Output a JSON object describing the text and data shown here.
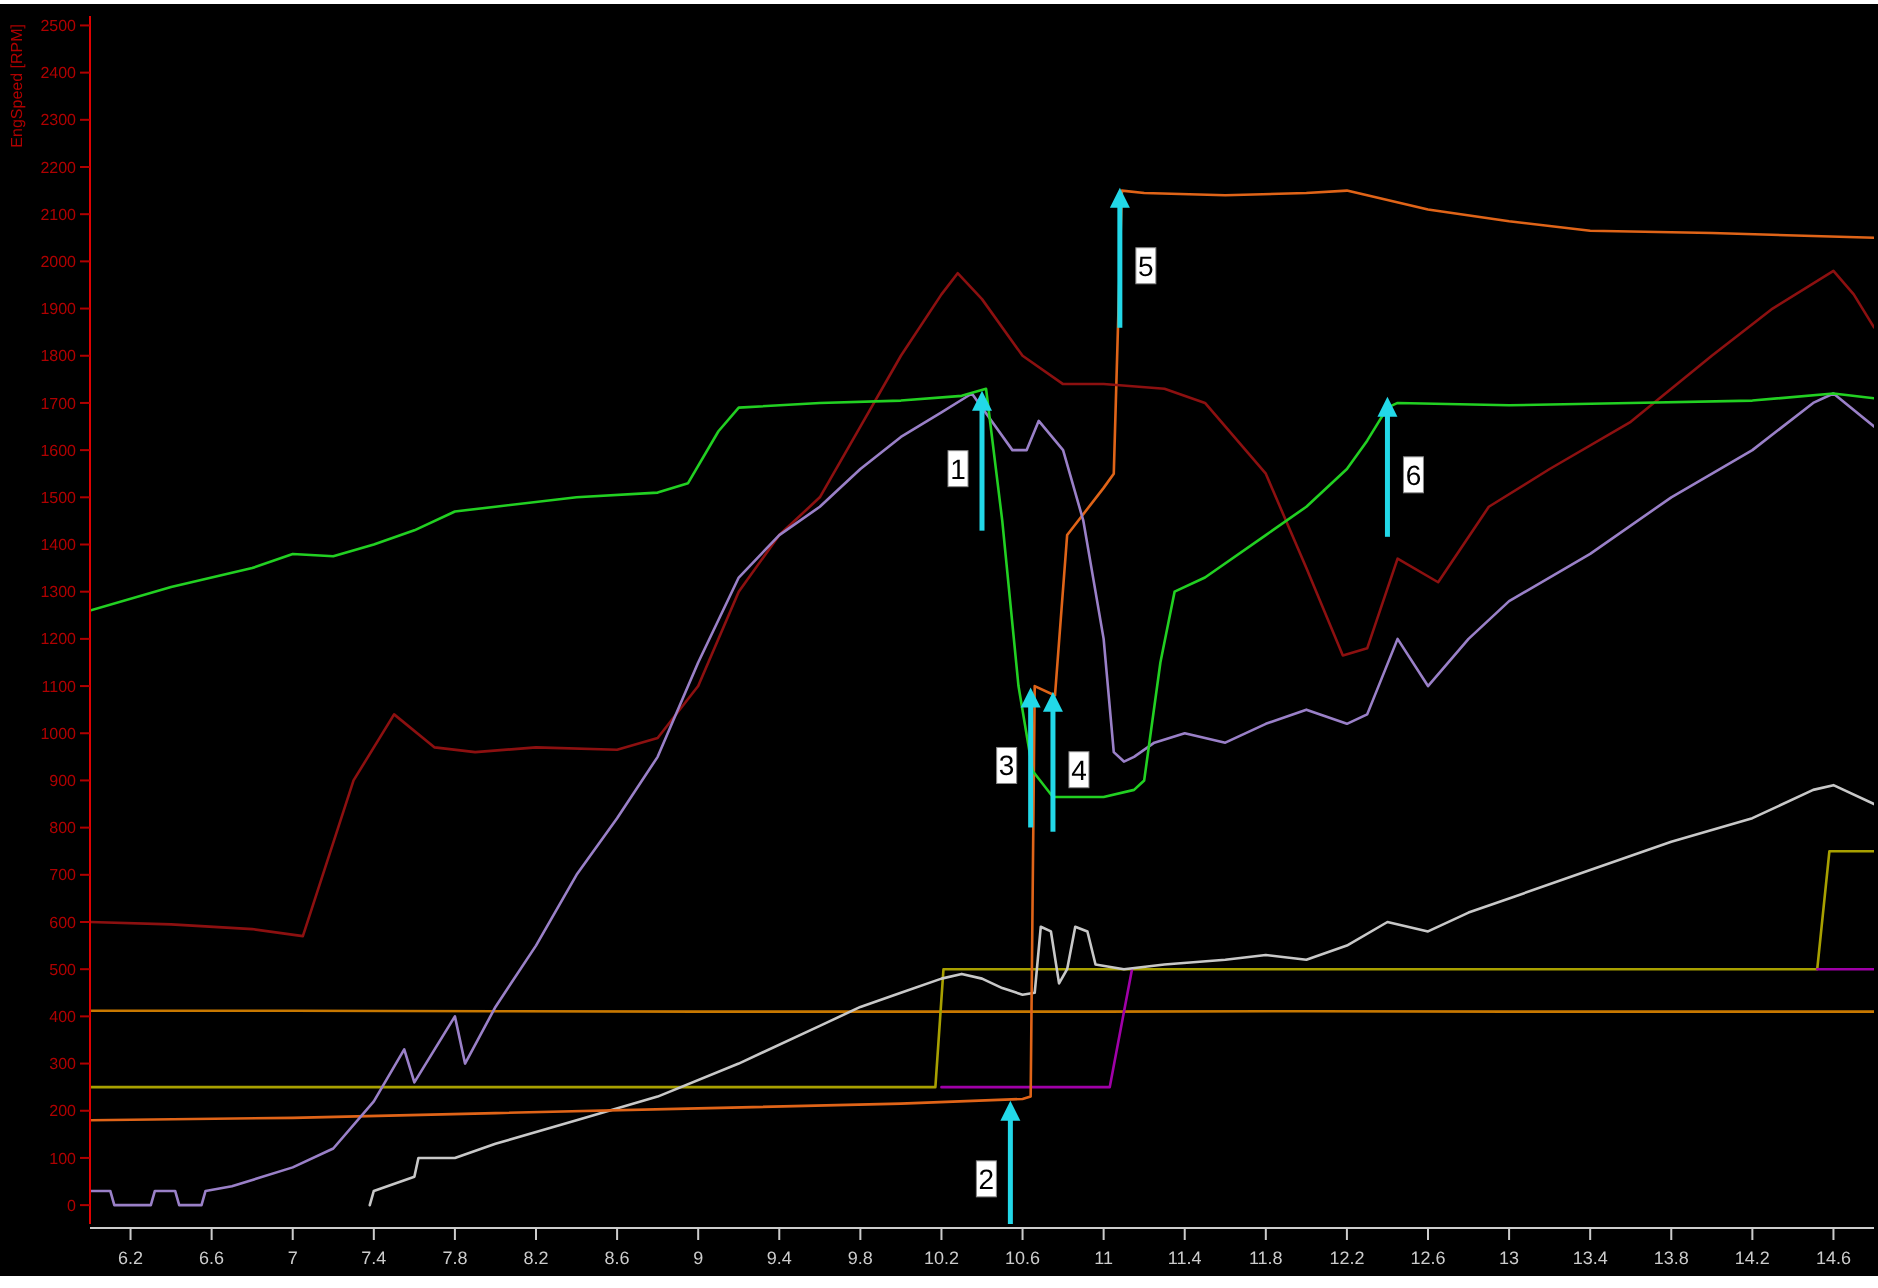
{
  "chart_data": {
    "type": "line",
    "ylabel": "EngSpeed [RPM]",
    "xlim": [
      6.0,
      14.8
    ],
    "ylim": [
      -40,
      2520
    ],
    "xticks": [
      6.2,
      6.6,
      7,
      7.4,
      7.8,
      8.2,
      8.6,
      9,
      9.4,
      9.8,
      10.2,
      10.6,
      11,
      11.4,
      11.8,
      12.2,
      12.6,
      13,
      13.4,
      13.8,
      14.2,
      14.6
    ],
    "yticks": [
      0,
      100,
      200,
      300,
      400,
      500,
      600,
      700,
      800,
      900,
      1000,
      1100,
      1200,
      1300,
      1400,
      1500,
      1600,
      1700,
      1800,
      1900,
      2000,
      2100,
      2200,
      2300,
      2400,
      2500
    ],
    "grid": false,
    "marker": "none",
    "line_style": "solid",
    "series": [
      {
        "color": "#c87800",
        "x": [
          6.0,
          7.0,
          8.0,
          9.0,
          10.0,
          11.0,
          12.0,
          13.0,
          14.0,
          14.8
        ],
        "values": [
          412,
          412,
          411,
          410,
          410,
          410,
          411,
          410,
          410,
          410
        ]
      },
      {
        "color": "#a8a000",
        "x": [
          6.0,
          10.17,
          10.21,
          14.52,
          14.58,
          14.8
        ],
        "values": [
          250,
          250,
          500,
          500,
          750,
          750
        ]
      },
      {
        "color": "#a000a8",
        "x": [
          10.2,
          11.03,
          11.14,
          11.2,
          14.52,
          14.8
        ],
        "values": [
          250,
          250,
          500,
          null,
          500,
          500
        ]
      },
      {
        "color": "#c8c8c8",
        "x": [
          7.38,
          7.4,
          7.6,
          7.62,
          7.8,
          8.0,
          8.4,
          8.8,
          9.2,
          9.6,
          9.8,
          10.0,
          10.2,
          10.3,
          10.4,
          10.5,
          10.6,
          10.66,
          10.69,
          10.74,
          10.78,
          10.82,
          10.86,
          10.92,
          10.96,
          11.1,
          11.3,
          11.6,
          11.8,
          12.0,
          12.2,
          12.4,
          12.6,
          12.8,
          13.0,
          13.4,
          13.8,
          14.2,
          14.5,
          14.6,
          14.8
        ],
        "values": [
          0,
          30,
          60,
          100,
          100,
          130,
          180,
          230,
          300,
          380,
          420,
          450,
          480,
          490,
          480,
          460,
          446,
          450,
          590,
          580,
          470,
          500,
          590,
          580,
          510,
          500,
          510,
          520,
          530,
          520,
          550,
          600,
          580,
          620,
          650,
          710,
          770,
          820,
          880,
          890,
          850
        ]
      },
      {
        "color": "#e06418",
        "x": [
          6.0,
          7.0,
          8.0,
          9.0,
          10.0,
          10.6,
          10.64,
          10.66,
          10.76,
          10.82,
          11.0,
          11.05,
          11.09,
          11.2,
          11.6,
          12.0,
          12.2,
          12.6,
          13.0,
          13.4,
          14.0,
          14.8
        ],
        "values": [
          180,
          185,
          195,
          205,
          215,
          225,
          230,
          1100,
          1080,
          1420,
          1520,
          1550,
          2150,
          2145,
          2140,
          2145,
          2150,
          2110,
          2085,
          2065,
          2060,
          2050
        ]
      },
      {
        "color": "#8c1010",
        "x": [
          6.0,
          6.4,
          6.8,
          7.05,
          7.3,
          7.5,
          7.7,
          7.9,
          8.2,
          8.6,
          8.8,
          9.0,
          9.2,
          9.4,
          9.6,
          9.8,
          10.0,
          10.2,
          10.28,
          10.4,
          10.6,
          10.8,
          11.0,
          11.3,
          11.5,
          11.8,
          12.0,
          12.18,
          12.3,
          12.45,
          12.65,
          12.9,
          13.2,
          13.6,
          14.0,
          14.3,
          14.6,
          14.7,
          14.8
        ],
        "values": [
          600,
          595,
          585,
          570,
          900,
          1040,
          970,
          960,
          970,
          965,
          990,
          1100,
          1300,
          1420,
          1500,
          1650,
          1800,
          1930,
          1975,
          1920,
          1800,
          1740,
          1740,
          1730,
          1700,
          1550,
          1350,
          1165,
          1180,
          1370,
          1320,
          1480,
          1560,
          1660,
          1800,
          1900,
          1980,
          1930,
          1860
        ]
      },
      {
        "color": "#9a80c8",
        "x": [
          6.0,
          6.1,
          6.12,
          6.3,
          6.32,
          6.42,
          6.44,
          6.55,
          6.57,
          6.7,
          7.0,
          7.2,
          7.4,
          7.55,
          7.6,
          7.8,
          7.85,
          8.0,
          8.2,
          8.4,
          8.6,
          8.8,
          9.0,
          9.2,
          9.4,
          9.6,
          9.8,
          10.0,
          10.2,
          10.35,
          10.45,
          10.55,
          10.62,
          10.68,
          10.8,
          10.9,
          11.0,
          11.05,
          11.1,
          11.15,
          11.25,
          11.4,
          11.6,
          11.8,
          12.0,
          12.2,
          12.3,
          12.45,
          12.6,
          12.8,
          13.0,
          13.4,
          13.8,
          14.2,
          14.5,
          14.6,
          14.8
        ],
        "values": [
          30,
          30,
          0,
          0,
          30,
          30,
          0,
          0,
          30,
          40,
          80,
          120,
          220,
          330,
          260,
          400,
          300,
          420,
          550,
          700,
          820,
          950,
          1150,
          1330,
          1420,
          1480,
          1560,
          1628,
          1680,
          1720,
          1660,
          1600,
          1600,
          1662,
          1600,
          1450,
          1200,
          960,
          940,
          950,
          980,
          1000,
          980,
          1020,
          1050,
          1020,
          1040,
          1200,
          1100,
          1200,
          1280,
          1380,
          1500,
          1600,
          1700,
          1720,
          1650
        ]
      },
      {
        "color": "#22d022",
        "x": [
          6.0,
          6.4,
          6.8,
          7.0,
          7.2,
          7.4,
          7.6,
          7.8,
          8.0,
          8.4,
          8.8,
          8.95,
          9.1,
          9.2,
          9.6,
          10.0,
          10.3,
          10.42,
          10.5,
          10.58,
          10.65,
          10.75,
          11.0,
          11.15,
          11.2,
          11.28,
          11.35,
          11.5,
          11.8,
          12.0,
          12.2,
          12.3,
          12.4,
          12.45,
          13.0,
          13.6,
          14.2,
          14.6,
          14.8
        ],
        "values": [
          1260,
          1310,
          1350,
          1380,
          1375,
          1400,
          1430,
          1470,
          1480,
          1500,
          1510,
          1530,
          1640,
          1690,
          1700,
          1705,
          1715,
          1730,
          1450,
          1100,
          920,
          865,
          865,
          880,
          900,
          1150,
          1300,
          1330,
          1420,
          1480,
          1560,
          1620,
          1690,
          1700,
          1695,
          1700,
          1705,
          1720,
          1710
        ]
      }
    ],
    "annotations": [
      {
        "text": "1",
        "x": 10.4,
        "y": 1726
      },
      {
        "text": "2",
        "x": 10.54,
        "y": 221
      },
      {
        "text": "3",
        "x": 10.64,
        "y": 1097
      },
      {
        "text": "4",
        "x": 10.75,
        "y": 1088
      },
      {
        "text": "5",
        "x": 11.08,
        "y": 2156
      },
      {
        "text": "6",
        "x": 12.4,
        "y": 1713
      }
    ]
  }
}
